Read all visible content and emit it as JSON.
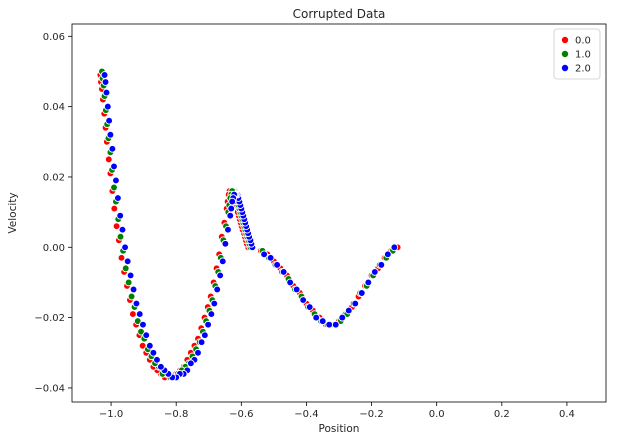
{
  "chart_data": {
    "type": "scatter",
    "title": "Corrupted Data",
    "xlabel": "Position",
    "ylabel": "Velocity",
    "xlim": [
      -1.12,
      0.52
    ],
    "ylim": [
      -0.044,
      0.0635
    ],
    "xticks": [
      -1.0,
      -0.8,
      -0.6,
      -0.4,
      -0.2,
      0.0,
      0.2,
      0.4
    ],
    "xtick_labels": [
      "−1.0",
      "−0.8",
      "−0.6",
      "−0.4",
      "−0.2",
      "0.0",
      "0.2",
      "0.4"
    ],
    "yticks": [
      -0.04,
      -0.02,
      0.0,
      0.02,
      0.04,
      0.06
    ],
    "ytick_labels": [
      "−0.04",
      "−0.02",
      "0.00",
      "0.02",
      "0.04",
      "0.06"
    ],
    "grid": false,
    "legend_position": "top-right",
    "series": [
      {
        "name": "0.0",
        "color": "#ff0000",
        "points": [
          [
            -0.577,
            0.0
          ],
          [
            -0.579,
            0.0
          ],
          [
            -0.583,
            0.001
          ],
          [
            -0.586,
            0.002
          ],
          [
            -0.589,
            0.003
          ],
          [
            -0.592,
            0.004
          ],
          [
            -0.596,
            0.005
          ],
          [
            -0.599,
            0.006
          ],
          [
            -0.602,
            0.007
          ],
          [
            -0.605,
            0.008
          ],
          [
            -0.608,
            0.009
          ],
          [
            -0.611,
            0.01
          ],
          [
            -0.614,
            0.012
          ],
          [
            -0.617,
            0.013
          ],
          [
            -0.62,
            0.014
          ],
          [
            -0.623,
            0.015
          ],
          [
            -0.626,
            0.016
          ],
          [
            -0.63,
            0.016
          ],
          [
            -0.633,
            0.016
          ],
          [
            -0.636,
            0.016
          ],
          [
            -0.639,
            0.015
          ],
          [
            -0.642,
            0.013
          ],
          [
            -0.645,
            0.011
          ],
          [
            -0.652,
            0.007
          ],
          [
            -0.66,
            0.003
          ],
          [
            -0.668,
            -0.002
          ],
          [
            -0.676,
            -0.006
          ],
          [
            -0.685,
            -0.01
          ],
          [
            -0.694,
            -0.014
          ],
          [
            -0.703,
            -0.017
          ],
          [
            -0.713,
            -0.02
          ],
          [
            -0.723,
            -0.023
          ],
          [
            -0.733,
            -0.026
          ],
          [
            -0.744,
            -0.028
          ],
          [
            -0.755,
            -0.03
          ],
          [
            -0.766,
            -0.032
          ],
          [
            -0.777,
            -0.034
          ],
          [
            -0.788,
            -0.035
          ],
          [
            -0.8,
            -0.036
          ],
          [
            -0.811,
            -0.037
          ],
          [
            -0.823,
            -0.037
          ],
          [
            -0.835,
            -0.037
          ],
          [
            -0.847,
            -0.036
          ],
          [
            -0.858,
            -0.035
          ],
          [
            -0.87,
            -0.034
          ],
          [
            -0.881,
            -0.032
          ],
          [
            -0.892,
            -0.03
          ],
          [
            -0.903,
            -0.028
          ],
          [
            -0.913,
            -0.025
          ],
          [
            -0.923,
            -0.022
          ],
          [
            -0.933,
            -0.019
          ],
          [
            -0.942,
            -0.015
          ],
          [
            -0.951,
            -0.011
          ],
          [
            -0.96,
            -0.007
          ],
          [
            -0.968,
            -0.003
          ],
          [
            -0.976,
            0.002
          ],
          [
            -0.983,
            0.006
          ],
          [
            -0.99,
            0.011
          ],
          [
            -0.996,
            0.016
          ],
          [
            -1.002,
            0.021
          ],
          [
            -1.007,
            0.025
          ],
          [
            -1.013,
            0.03
          ],
          [
            -1.017,
            0.034
          ],
          [
            -1.021,
            0.038
          ],
          [
            -1.025,
            0.042
          ],
          [
            -1.028,
            0.045
          ],
          [
            -1.031,
            0.047
          ],
          [
            -1.033,
            0.049
          ],
          [
            -0.54,
            -0.001
          ],
          [
            -0.52,
            -0.002
          ],
          [
            -0.5,
            -0.004
          ],
          [
            -0.48,
            -0.006
          ],
          [
            -0.46,
            -0.008
          ],
          [
            -0.44,
            -0.011
          ],
          [
            -0.42,
            -0.013
          ],
          [
            -0.4,
            -0.016
          ],
          [
            -0.38,
            -0.018
          ],
          [
            -0.36,
            -0.02
          ],
          [
            -0.34,
            -0.022
          ],
          [
            -0.32,
            -0.022
          ],
          [
            -0.3,
            -0.021
          ],
          [
            -0.28,
            -0.019
          ],
          [
            -0.26,
            -0.017
          ],
          [
            -0.24,
            -0.014
          ],
          [
            -0.22,
            -0.011
          ],
          [
            -0.2,
            -0.008
          ],
          [
            -0.18,
            -0.006
          ],
          [
            -0.16,
            -0.003
          ],
          [
            -0.14,
            -0.001
          ],
          [
            -0.12,
            0.0
          ]
        ]
      },
      {
        "name": "1.0",
        "color": "#008000",
        "points": [
          [
            -0.572,
            0.0
          ],
          [
            -0.575,
            0.001
          ],
          [
            -0.578,
            0.002
          ],
          [
            -0.582,
            0.003
          ],
          [
            -0.585,
            0.004
          ],
          [
            -0.588,
            0.005
          ],
          [
            -0.591,
            0.006
          ],
          [
            -0.594,
            0.007
          ],
          [
            -0.597,
            0.008
          ],
          [
            -0.6,
            0.009
          ],
          [
            -0.603,
            0.01
          ],
          [
            -0.606,
            0.011
          ],
          [
            -0.609,
            0.012
          ],
          [
            -0.612,
            0.013
          ],
          [
            -0.615,
            0.014
          ],
          [
            -0.618,
            0.015
          ],
          [
            -0.621,
            0.016
          ],
          [
            -0.625,
            0.016
          ],
          [
            -0.628,
            0.016
          ],
          [
            -0.631,
            0.015
          ],
          [
            -0.634,
            0.014
          ],
          [
            -0.637,
            0.012
          ],
          [
            -0.64,
            0.01
          ],
          [
            -0.647,
            0.006
          ],
          [
            -0.655,
            0.002
          ],
          [
            -0.663,
            -0.003
          ],
          [
            -0.671,
            -0.007
          ],
          [
            -0.68,
            -0.011
          ],
          [
            -0.689,
            -0.015
          ],
          [
            -0.698,
            -0.018
          ],
          [
            -0.708,
            -0.021
          ],
          [
            -0.718,
            -0.024
          ],
          [
            -0.728,
            -0.027
          ],
          [
            -0.739,
            -0.029
          ],
          [
            -0.75,
            -0.031
          ],
          [
            -0.761,
            -0.033
          ],
          [
            -0.772,
            -0.034
          ],
          [
            -0.783,
            -0.035
          ],
          [
            -0.795,
            -0.036
          ],
          [
            -0.806,
            -0.037
          ],
          [
            -0.818,
            -0.037
          ],
          [
            -0.83,
            -0.036
          ],
          [
            -0.842,
            -0.036
          ],
          [
            -0.853,
            -0.034
          ],
          [
            -0.865,
            -0.033
          ],
          [
            -0.876,
            -0.031
          ],
          [
            -0.887,
            -0.029
          ],
          [
            -0.898,
            -0.026
          ],
          [
            -0.908,
            -0.024
          ],
          [
            -0.918,
            -0.021
          ],
          [
            -0.928,
            -0.017
          ],
          [
            -0.937,
            -0.014
          ],
          [
            -0.946,
            -0.01
          ],
          [
            -0.955,
            -0.006
          ],
          [
            -0.963,
            -0.001
          ],
          [
            -0.971,
            0.003
          ],
          [
            -0.978,
            0.008
          ],
          [
            -0.985,
            0.013
          ],
          [
            -0.991,
            0.017
          ],
          [
            -0.997,
            0.022
          ],
          [
            -1.002,
            0.027
          ],
          [
            -1.008,
            0.031
          ],
          [
            -1.012,
            0.035
          ],
          [
            -1.016,
            0.039
          ],
          [
            -1.02,
            0.043
          ],
          [
            -1.023,
            0.046
          ],
          [
            -1.026,
            0.048
          ],
          [
            -1.028,
            0.05
          ],
          [
            -0.535,
            -0.001
          ],
          [
            -0.515,
            -0.003
          ],
          [
            -0.495,
            -0.005
          ],
          [
            -0.475,
            -0.007
          ],
          [
            -0.455,
            -0.009
          ],
          [
            -0.435,
            -0.012
          ],
          [
            -0.415,
            -0.014
          ],
          [
            -0.395,
            -0.017
          ],
          [
            -0.375,
            -0.019
          ],
          [
            -0.355,
            -0.021
          ],
          [
            -0.335,
            -0.022
          ],
          [
            -0.315,
            -0.022
          ],
          [
            -0.295,
            -0.021
          ],
          [
            -0.275,
            -0.019
          ],
          [
            -0.255,
            -0.016
          ],
          [
            -0.235,
            -0.013
          ],
          [
            -0.215,
            -0.011
          ],
          [
            -0.195,
            -0.008
          ],
          [
            -0.175,
            -0.005
          ],
          [
            -0.155,
            -0.003
          ],
          [
            -0.135,
            -0.001
          ]
        ]
      },
      {
        "name": "2.0",
        "color": "#0000ff",
        "points": [
          [
            -0.566,
            0.0
          ],
          [
            -0.569,
            0.001
          ],
          [
            -0.572,
            0.002
          ],
          [
            -0.576,
            0.003
          ],
          [
            -0.579,
            0.004
          ],
          [
            -0.582,
            0.005
          ],
          [
            -0.585,
            0.006
          ],
          [
            -0.588,
            0.007
          ],
          [
            -0.591,
            0.008
          ],
          [
            -0.594,
            0.009
          ],
          [
            -0.597,
            0.01
          ],
          [
            -0.6,
            0.011
          ],
          [
            -0.603,
            0.012
          ],
          [
            -0.606,
            0.013
          ],
          [
            -0.609,
            0.014
          ],
          [
            -0.612,
            0.015
          ],
          [
            -0.616,
            0.015
          ],
          [
            -0.619,
            0.015
          ],
          [
            -0.622,
            0.015
          ],
          [
            -0.625,
            0.014
          ],
          [
            -0.628,
            0.013
          ],
          [
            -0.631,
            0.011
          ],
          [
            -0.634,
            0.009
          ],
          [
            -0.641,
            0.005
          ],
          [
            -0.649,
            0.001
          ],
          [
            -0.657,
            -0.004
          ],
          [
            -0.665,
            -0.008
          ],
          [
            -0.674,
            -0.012
          ],
          [
            -0.683,
            -0.016
          ],
          [
            -0.692,
            -0.019
          ],
          [
            -0.702,
            -0.022
          ],
          [
            -0.712,
            -0.025
          ],
          [
            -0.722,
            -0.027
          ],
          [
            -0.733,
            -0.03
          ],
          [
            -0.744,
            -0.032
          ],
          [
            -0.755,
            -0.033
          ],
          [
            -0.766,
            -0.035
          ],
          [
            -0.777,
            -0.036
          ],
          [
            -0.789,
            -0.036
          ],
          [
            -0.8,
            -0.037
          ],
          [
            -0.812,
            -0.037
          ],
          [
            -0.824,
            -0.036
          ],
          [
            -0.836,
            -0.035
          ],
          [
            -0.847,
            -0.034
          ],
          [
            -0.859,
            -0.032
          ],
          [
            -0.87,
            -0.03
          ],
          [
            -0.881,
            -0.028
          ],
          [
            -0.892,
            -0.025
          ],
          [
            -0.902,
            -0.022
          ],
          [
            -0.912,
            -0.019
          ],
          [
            -0.922,
            -0.016
          ],
          [
            -0.931,
            -0.012
          ],
          [
            -0.94,
            -0.008
          ],
          [
            -0.949,
            -0.004
          ],
          [
            -0.957,
            0.0
          ],
          [
            -0.965,
            0.005
          ],
          [
            -0.972,
            0.009
          ],
          [
            -0.979,
            0.014
          ],
          [
            -0.985,
            0.019
          ],
          [
            -0.991,
            0.023
          ],
          [
            -0.996,
            0.028
          ],
          [
            -1.002,
            0.032
          ],
          [
            -1.006,
            0.036
          ],
          [
            -1.01,
            0.04
          ],
          [
            -1.014,
            0.044
          ],
          [
            -1.017,
            0.047
          ],
          [
            -1.02,
            0.049
          ],
          [
            -0.53,
            -0.002
          ],
          [
            -0.51,
            -0.003
          ],
          [
            -0.49,
            -0.005
          ],
          [
            -0.47,
            -0.007
          ],
          [
            -0.45,
            -0.01
          ],
          [
            -0.43,
            -0.012
          ],
          [
            -0.41,
            -0.015
          ],
          [
            -0.39,
            -0.017
          ],
          [
            -0.37,
            -0.02
          ],
          [
            -0.35,
            -0.021
          ],
          [
            -0.33,
            -0.022
          ],
          [
            -0.31,
            -0.022
          ],
          [
            -0.29,
            -0.02
          ],
          [
            -0.27,
            -0.018
          ],
          [
            -0.25,
            -0.016
          ],
          [
            -0.23,
            -0.013
          ],
          [
            -0.21,
            -0.01
          ],
          [
            -0.19,
            -0.007
          ],
          [
            -0.17,
            -0.005
          ],
          [
            -0.15,
            -0.002
          ],
          [
            -0.13,
            0.0
          ]
        ]
      }
    ]
  }
}
